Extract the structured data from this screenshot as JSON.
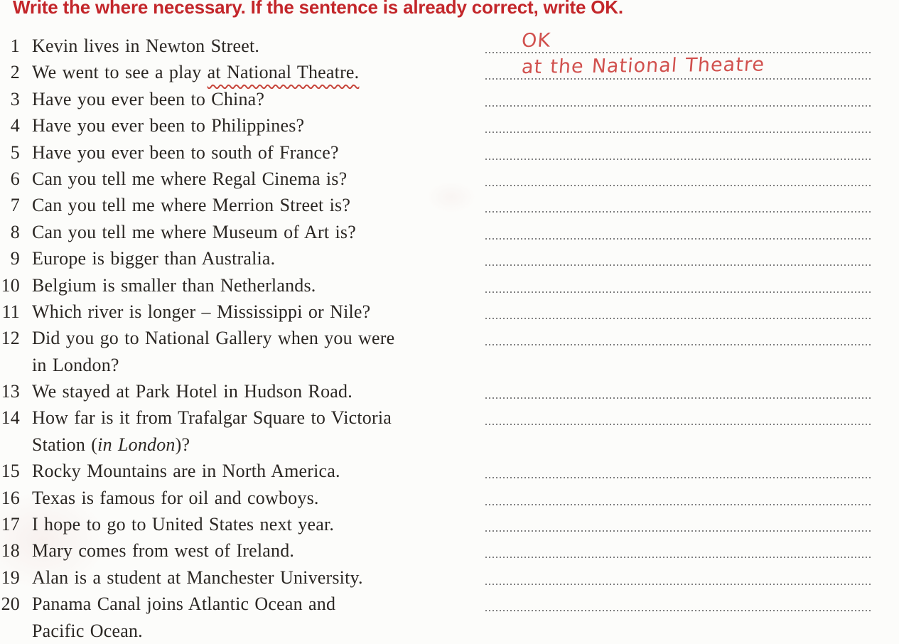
{
  "title": {
    "text": "Write the where necessary. If the sentence is already correct, write OK."
  },
  "colors": {
    "accent_red": "#c3262a",
    "handwriting_red": "#ca3431",
    "wavy_underline_red": "#c7463b",
    "dotted_line": "#6a6a6a",
    "ink": "#2b2723",
    "paper": "#fcfcfa"
  },
  "exercise": {
    "items": [
      {
        "num": "1",
        "line1": "Kevin lives in Newton Street.",
        "answer": "OK"
      },
      {
        "num": "2",
        "line1_pre": "We went to see a play ",
        "line1_marked": "at National Theatre.",
        "answer": "at the National Theatre"
      },
      {
        "num": "3",
        "line1": "Have you ever been to China?"
      },
      {
        "num": "4",
        "line1": "Have you ever been to Philippines?"
      },
      {
        "num": "5",
        "line1": "Have you ever been to south of France?"
      },
      {
        "num": "6",
        "line1": "Can you tell me where Regal Cinema is?"
      },
      {
        "num": "7",
        "line1": "Can you tell me where Merrion Street is?"
      },
      {
        "num": "8",
        "line1": "Can you tell me where Museum of Art is?"
      },
      {
        "num": "9",
        "line1": "Europe is bigger than Australia."
      },
      {
        "num": "10",
        "line1": "Belgium is smaller than Netherlands."
      },
      {
        "num": "11",
        "line1": "Which river is longer – Mississippi or Nile?"
      },
      {
        "num": "12",
        "line1": "Did you go to National Gallery when you were",
        "line2": "in London?"
      },
      {
        "num": "13",
        "line1": "We stayed at Park Hotel in Hudson Road."
      },
      {
        "num": "14",
        "line1": "How far is it from Trafalgar Square to Victoria",
        "line2_pre": "Station (",
        "line2_italic": "in London",
        "line2_post": ")?"
      },
      {
        "num": "15",
        "line1": "Rocky Mountains are in North America."
      },
      {
        "num": "16",
        "line1": "Texas is famous for oil and cowboys."
      },
      {
        "num": "17",
        "line1": "I hope to go to United States next year."
      },
      {
        "num": "18",
        "line1": "Mary comes from west of Ireland."
      },
      {
        "num": "19",
        "line1": "Alan is a student at Manchester University."
      },
      {
        "num": "20",
        "line1": "Panama Canal joins Atlantic Ocean and",
        "line2": "Pacific Ocean."
      }
    ]
  }
}
